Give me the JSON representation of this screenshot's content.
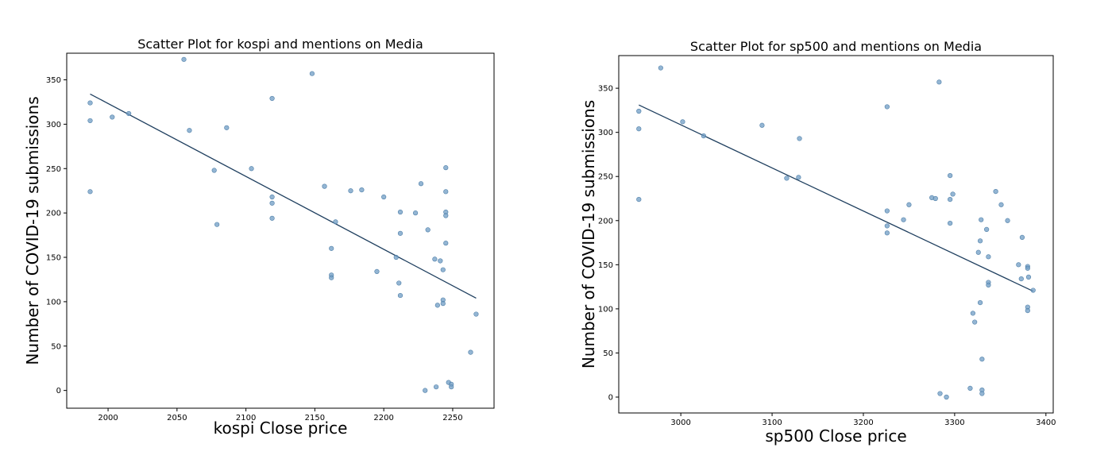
{
  "chart_data": [
    {
      "type": "scatter",
      "title": "Scatter Plot for kospi and mentions on Media",
      "xlabel": "kospi Close price",
      "ylabel": "Number of COVID-19 submissions",
      "xlim": [
        1970,
        2280
      ],
      "ylim": [
        -20,
        380
      ],
      "xticks": [
        2000,
        2050,
        2100,
        2150,
        2200,
        2250
      ],
      "yticks": [
        0,
        50,
        100,
        150,
        200,
        250,
        300,
        350
      ],
      "grid": false,
      "points": [
        {
          "x": 1987,
          "y": 324
        },
        {
          "x": 1987,
          "y": 304
        },
        {
          "x": 1987,
          "y": 224
        },
        {
          "x": 2003,
          "y": 308
        },
        {
          "x": 2015,
          "y": 312
        },
        {
          "x": 2055,
          "y": 373
        },
        {
          "x": 2059,
          "y": 293
        },
        {
          "x": 2077,
          "y": 248
        },
        {
          "x": 2079,
          "y": 187
        },
        {
          "x": 2086,
          "y": 296
        },
        {
          "x": 2104,
          "y": 250
        },
        {
          "x": 2119,
          "y": 329
        },
        {
          "x": 2119,
          "y": 218
        },
        {
          "x": 2119,
          "y": 211
        },
        {
          "x": 2119,
          "y": 194
        },
        {
          "x": 2148,
          "y": 357
        },
        {
          "x": 2157,
          "y": 230
        },
        {
          "x": 2162,
          "y": 160
        },
        {
          "x": 2162,
          "y": 130
        },
        {
          "x": 2162,
          "y": 127
        },
        {
          "x": 2165,
          "y": 190
        },
        {
          "x": 2176,
          "y": 225
        },
        {
          "x": 2184,
          "y": 226
        },
        {
          "x": 2195,
          "y": 134
        },
        {
          "x": 2200,
          "y": 218
        },
        {
          "x": 2209,
          "y": 150
        },
        {
          "x": 2211,
          "y": 121
        },
        {
          "x": 2212,
          "y": 201
        },
        {
          "x": 2212,
          "y": 177
        },
        {
          "x": 2212,
          "y": 107
        },
        {
          "x": 2223,
          "y": 200
        },
        {
          "x": 2227,
          "y": 233
        },
        {
          "x": 2230,
          "y": 0
        },
        {
          "x": 2232,
          "y": 181
        },
        {
          "x": 2237,
          "y": 148
        },
        {
          "x": 2238,
          "y": 4
        },
        {
          "x": 2239,
          "y": 96
        },
        {
          "x": 2241,
          "y": 146
        },
        {
          "x": 2243,
          "y": 136
        },
        {
          "x": 2243,
          "y": 102
        },
        {
          "x": 2243,
          "y": 98
        },
        {
          "x": 2245,
          "y": 251
        },
        {
          "x": 2245,
          "y": 224
        },
        {
          "x": 2245,
          "y": 201
        },
        {
          "x": 2245,
          "y": 197
        },
        {
          "x": 2245,
          "y": 166
        },
        {
          "x": 2247,
          "y": 9
        },
        {
          "x": 2249,
          "y": 7
        },
        {
          "x": 2249,
          "y": 4
        },
        {
          "x": 2263,
          "y": 43
        },
        {
          "x": 2267,
          "y": 86
        }
      ],
      "trendline": [
        {
          "x": 1987,
          "y": 334
        },
        {
          "x": 2267,
          "y": 104
        }
      ]
    },
    {
      "type": "scatter",
      "title": "Scatter Plot for sp500 and mentions on Media",
      "xlabel": "sp500 Close price",
      "ylabel": "Number of COVID-19 submissions",
      "xlim": [
        2932,
        3408
      ],
      "ylim": [
        -18,
        387
      ],
      "xticks": [
        3000,
        3100,
        3200,
        3300,
        3400
      ],
      "yticks": [
        0,
        50,
        100,
        150,
        200,
        250,
        300,
        350
      ],
      "grid": false,
      "points": [
        {
          "x": 2954,
          "y": 324
        },
        {
          "x": 2954,
          "y": 304
        },
        {
          "x": 2954,
          "y": 224
        },
        {
          "x": 2978,
          "y": 373
        },
        {
          "x": 3002,
          "y": 312
        },
        {
          "x": 3025,
          "y": 296
        },
        {
          "x": 3089,
          "y": 308
        },
        {
          "x": 3116,
          "y": 248
        },
        {
          "x": 3129,
          "y": 249
        },
        {
          "x": 3130,
          "y": 293
        },
        {
          "x": 3226,
          "y": 329
        },
        {
          "x": 3226,
          "y": 211
        },
        {
          "x": 3226,
          "y": 194
        },
        {
          "x": 3226,
          "y": 186
        },
        {
          "x": 3244,
          "y": 201
        },
        {
          "x": 3250,
          "y": 218
        },
        {
          "x": 3275,
          "y": 226
        },
        {
          "x": 3279,
          "y": 225
        },
        {
          "x": 3283,
          "y": 357
        },
        {
          "x": 3284,
          "y": 4
        },
        {
          "x": 3291,
          "y": 0
        },
        {
          "x": 3295,
          "y": 251
        },
        {
          "x": 3295,
          "y": 224
        },
        {
          "x": 3295,
          "y": 197
        },
        {
          "x": 3298,
          "y": 230
        },
        {
          "x": 3317,
          "y": 10
        },
        {
          "x": 3320,
          "y": 95
        },
        {
          "x": 3322,
          "y": 85
        },
        {
          "x": 3326,
          "y": 164
        },
        {
          "x": 3328,
          "y": 177
        },
        {
          "x": 3328,
          "y": 107
        },
        {
          "x": 3329,
          "y": 201
        },
        {
          "x": 3330,
          "y": 43
        },
        {
          "x": 3330,
          "y": 8
        },
        {
          "x": 3330,
          "y": 4
        },
        {
          "x": 3335,
          "y": 190
        },
        {
          "x": 3337,
          "y": 159
        },
        {
          "x": 3337,
          "y": 130
        },
        {
          "x": 3337,
          "y": 127
        },
        {
          "x": 3345,
          "y": 233
        },
        {
          "x": 3351,
          "y": 218
        },
        {
          "x": 3358,
          "y": 200
        },
        {
          "x": 3370,
          "y": 150
        },
        {
          "x": 3373,
          "y": 134
        },
        {
          "x": 3374,
          "y": 181
        },
        {
          "x": 3380,
          "y": 148
        },
        {
          "x": 3380,
          "y": 146
        },
        {
          "x": 3381,
          "y": 136
        },
        {
          "x": 3380,
          "y": 102
        },
        {
          "x": 3380,
          "y": 98
        },
        {
          "x": 3386,
          "y": 121
        }
      ],
      "trendline": [
        {
          "x": 2954,
          "y": 331
        },
        {
          "x": 3386,
          "y": 120
        }
      ]
    }
  ]
}
